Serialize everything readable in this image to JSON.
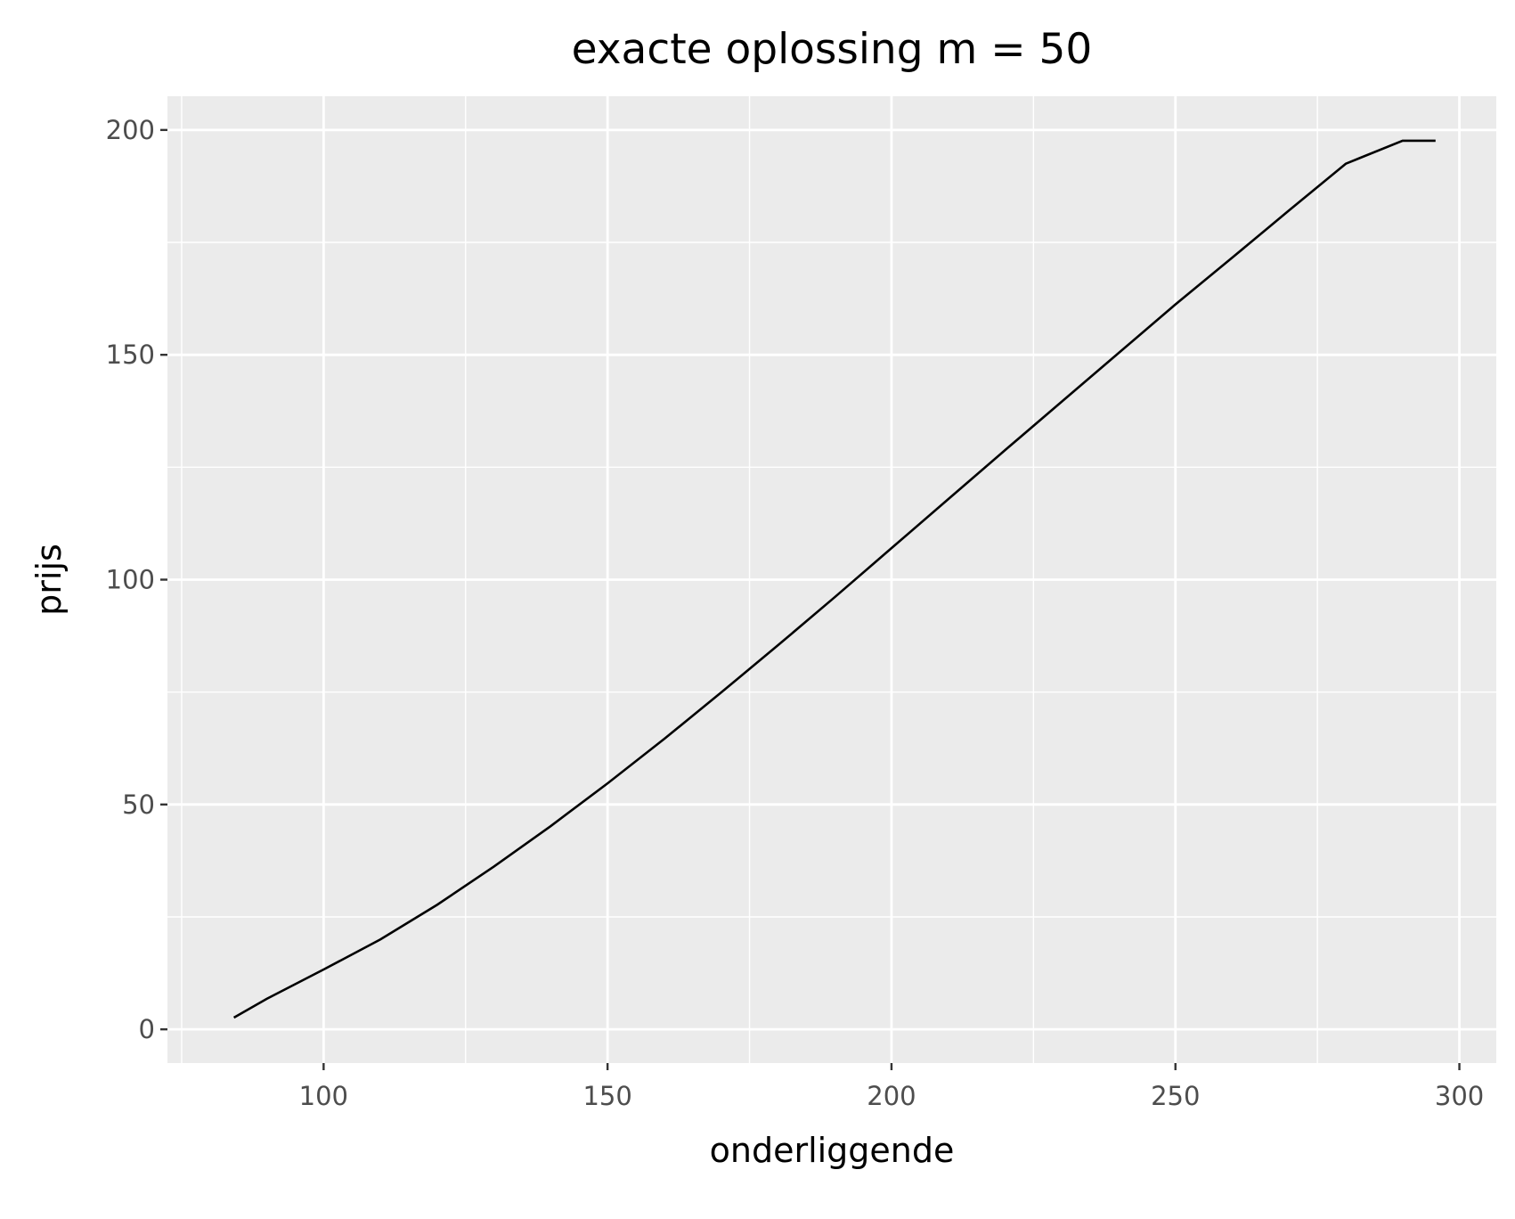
{
  "chart_data": {
    "type": "line",
    "title": "exacte oplossing m = 50",
    "xlabel": "onderliggende",
    "ylabel": "prijs",
    "xlim": [
      72.5,
      306.5
    ],
    "ylim": [
      -7.5,
      207.5
    ],
    "x_ticks": [
      100,
      150,
      200,
      250,
      300
    ],
    "x_tick_labels": [
      "100",
      "150",
      "200",
      "250",
      "300"
    ],
    "y_ticks": [
      0,
      50,
      100,
      150,
      200
    ],
    "y_tick_labels": [
      "0",
      "50",
      "100",
      "150",
      "200"
    ],
    "x_minor_ticks": [
      75,
      125,
      175,
      225,
      275
    ],
    "y_minor_ticks": [
      25,
      75,
      125,
      175
    ],
    "grid": true,
    "background": "#ebebeb",
    "grid_color": "#ffffff",
    "line_color": "#000000",
    "series": [
      {
        "x": [
          84.2,
          90,
          100,
          110,
          120,
          130,
          140,
          150,
          160,
          170,
          180,
          190,
          200,
          210,
          220,
          230,
          240,
          250,
          260,
          270,
          280,
          290,
          295.8
        ],
        "y": [
          2.6,
          6.8,
          13.3,
          20.0,
          27.7,
          36.2,
          45.2,
          54.7,
          64.6,
          74.9,
          85.4,
          96.1,
          107.0,
          117.9,
          128.8,
          139.6,
          150.4,
          161.2,
          171.6,
          182.1,
          192.5,
          197.6,
          197.6
        ]
      }
    ]
  }
}
